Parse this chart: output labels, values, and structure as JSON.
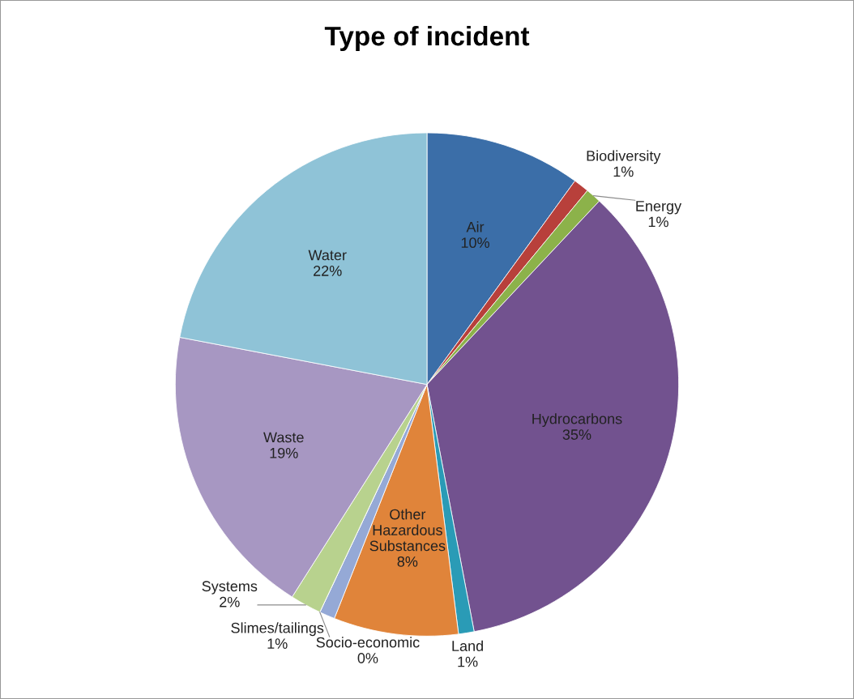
{
  "chart_data": {
    "type": "pie",
    "title": "Type of incident",
    "categories": [
      "Air",
      "Biodiversity",
      "Energy",
      "Hydrocarbons",
      "Land",
      "Other Hazardous Substances",
      "Slimes/tailings",
      "Socio-economic",
      "Systems",
      "Waste",
      "Water"
    ],
    "values": [
      10,
      1,
      1,
      35,
      1,
      8,
      1,
      0,
      2,
      19,
      22
    ],
    "colors": [
      "#3b6ea8",
      "#b8403b",
      "#8cb24a",
      "#72528f",
      "#2a9bb6",
      "#e0843a",
      "#95a9d6",
      "#e6a0a0",
      "#b8d28e",
      "#a797c2",
      "#8fc3d7"
    ],
    "value_labels": [
      "10%",
      "1%",
      "1%",
      "35%",
      "1%",
      "8%",
      "1%",
      "0%",
      "2%",
      "19%",
      "22%"
    ]
  }
}
